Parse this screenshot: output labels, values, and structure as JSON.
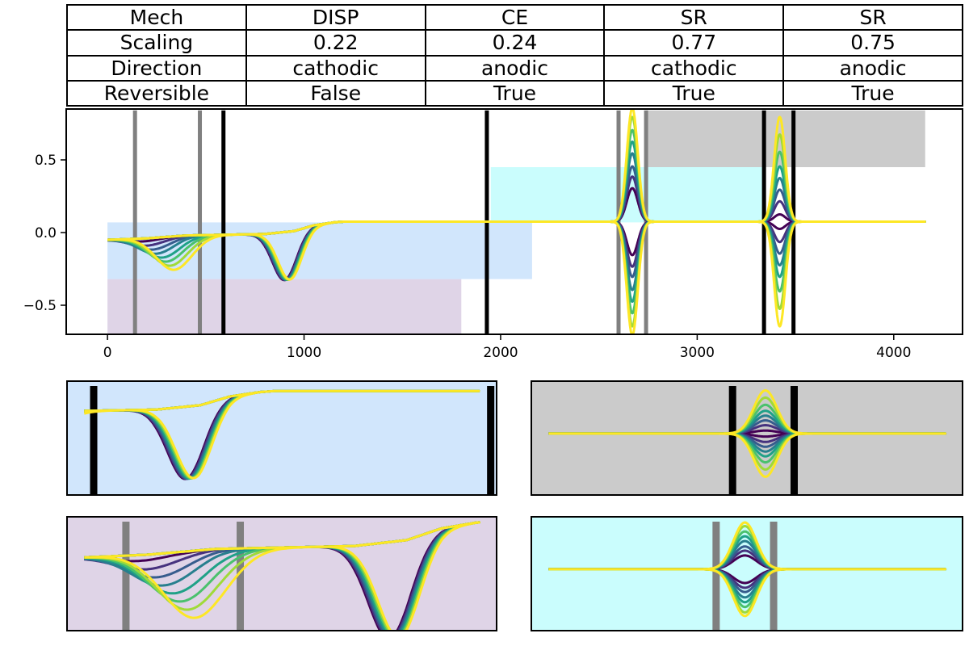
{
  "table": {
    "rows": [
      [
        "Mech",
        "DISP",
        "CE",
        "SR",
        "SR"
      ],
      [
        "Scaling",
        "0.22",
        "0.24",
        "0.77",
        "0.75"
      ],
      [
        "Direction",
        "cathodic",
        "anodic",
        "cathodic",
        "anodic"
      ],
      [
        "Reversible",
        "False",
        "True",
        "True",
        "True"
      ]
    ]
  },
  "chart_data": {
    "type": "line",
    "xlim": [
      -210,
      4350
    ],
    "ylim": [
      -0.7,
      0.85
    ],
    "xticks": [
      0,
      1000,
      2000,
      3000,
      4000
    ],
    "xtick_labels": [
      "0",
      "1000",
      "2000",
      "3000",
      "4000"
    ],
    "yticks": [
      -0.5,
      0.0,
      0.5
    ],
    "ytick_labels": [
      "−0.5",
      "0.0",
      "0.5"
    ],
    "grid": false,
    "colormap": [
      "#440154",
      "#46327e",
      "#365c8d",
      "#277f8e",
      "#1fa187",
      "#4ac16d",
      "#a0da39",
      "#fde725"
    ],
    "regions": [
      {
        "x": [
          0,
          1800
        ],
        "y": [
          -0.7,
          -0.32
        ],
        "color": "#dfd4e7"
      },
      {
        "x": [
          0,
          2160
        ],
        "y": [
          -0.32,
          0.07
        ],
        "color": "#d1e6fc"
      },
      {
        "x": [
          1950,
          3340
        ],
        "y": [
          0.07,
          0.45
        ],
        "color": "#cafdfd"
      },
      {
        "x": [
          2740,
          4160
        ],
        "y": [
          0.45,
          0.84
        ],
        "color": "#cbcbcb"
      }
    ],
    "vlines": [
      {
        "x": 140,
        "color": "#808080"
      },
      {
        "x": 470,
        "color": "#808080"
      },
      {
        "x": 590,
        "color": "#000000"
      },
      {
        "x": 1930,
        "color": "#000000"
      },
      {
        "x": 2600,
        "color": "#808080"
      },
      {
        "x": 2740,
        "color": "#808080"
      },
      {
        "x": 3340,
        "color": "#000000"
      },
      {
        "x": 3490,
        "color": "#000000"
      }
    ],
    "baseline": [
      [
        0,
        -0.05
      ],
      [
        200,
        -0.04
      ],
      [
        400,
        -0.02
      ],
      [
        600,
        -0.015
      ],
      [
        800,
        -0.01
      ],
      [
        950,
        0.01
      ],
      [
        1050,
        0.05
      ],
      [
        1150,
        0.07
      ],
      [
        1200,
        0.075
      ],
      [
        4160,
        0.075
      ]
    ],
    "disp_dip": {
      "x": 900,
      "depth": 0.33,
      "width": 60
    },
    "cathodic_dips": [
      {
        "x": 170,
        "depth": 0.02
      },
      {
        "x": 200,
        "depth": 0.05
      },
      {
        "x": 230,
        "depth": 0.08
      },
      {
        "x": 250,
        "depth": 0.11
      },
      {
        "x": 280,
        "depth": 0.14
      },
      {
        "x": 300,
        "depth": 0.17
      },
      {
        "x": 320,
        "depth": 0.2
      },
      {
        "x": 340,
        "depth": 0.23
      }
    ],
    "sr_peaks": [
      {
        "x": 2670,
        "amplitudes": [
          0.23,
          0.31,
          0.38,
          0.47,
          0.55,
          0.63,
          0.72,
          0.78
        ],
        "width": 28
      },
      {
        "x": 3420,
        "amplitudes": [
          0.05,
          0.14,
          0.22,
          0.3,
          0.38,
          0.48,
          0.6,
          0.72
        ],
        "width": 28
      }
    ],
    "insets": [
      {
        "name": "inset-disp",
        "background": "#d1e6fc",
        "xlim": [
          500,
          1950
        ],
        "vlines": [
          {
            "x": 590,
            "color": "#000000"
          },
          {
            "x": 1930,
            "color": "#000000"
          }
        ]
      },
      {
        "name": "inset-sr-cathodic",
        "background": "#cbcbcb",
        "xlim": [
          2850,
          3900
        ],
        "vlines": [
          {
            "x": 3340,
            "color": "#000000"
          },
          {
            "x": 3490,
            "color": "#000000"
          }
        ]
      },
      {
        "name": "inset-cathodic-shift",
        "background": "#dfd4e7",
        "xlim": [
          -30,
          1210
        ],
        "vlines": [
          {
            "x": 140,
            "color": "#808080"
          },
          {
            "x": 470,
            "color": "#808080"
          }
        ]
      },
      {
        "name": "inset-sr-anodic",
        "background": "#cafdfd",
        "xlim": [
          2150,
          3200
        ],
        "vlines": [
          {
            "x": 2600,
            "color": "#808080"
          },
          {
            "x": 2740,
            "color": "#808080"
          }
        ]
      }
    ]
  }
}
